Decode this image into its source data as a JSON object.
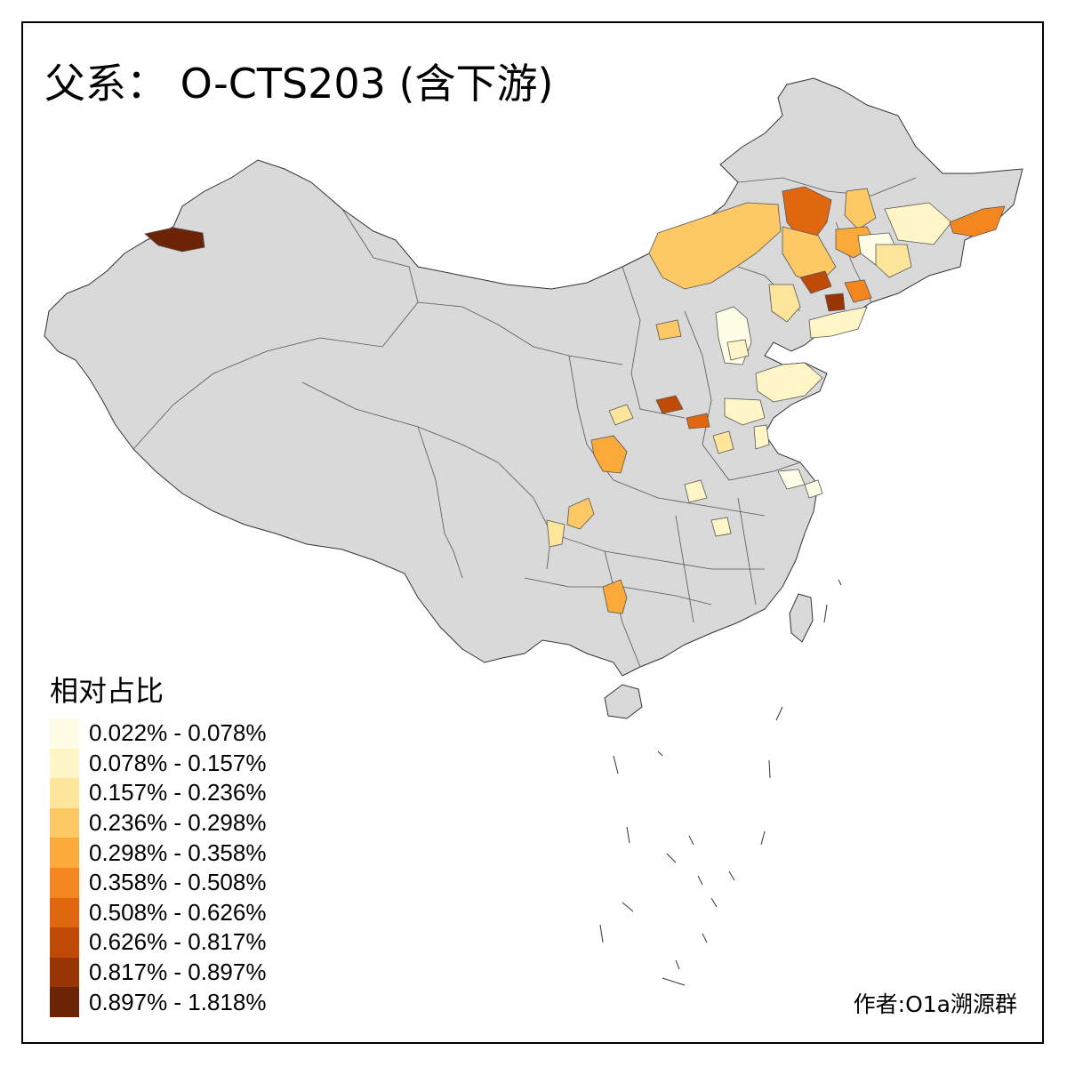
{
  "title": "父系： O-CTS203 (含下游)",
  "legend": {
    "title": "相对占比",
    "classes": [
      {
        "label": "0.022% - 0.078%",
        "color": "#fffde6"
      },
      {
        "label": "0.078% - 0.157%",
        "color": "#fff5c6"
      },
      {
        "label": "0.157% - 0.236%",
        "color": "#fee59c"
      },
      {
        "label": "0.236% - 0.298%",
        "color": "#fec964"
      },
      {
        "label": "0.298% - 0.358%",
        "color": "#fba938"
      },
      {
        "label": "0.358% - 0.508%",
        "color": "#f4861f"
      },
      {
        "label": "0.508% - 0.626%",
        "color": "#e06710"
      },
      {
        "label": "0.626% - 0.817%",
        "color": "#c04b06"
      },
      {
        "label": "0.817% - 0.897%",
        "color": "#993404"
      },
      {
        "label": "0.897% - 1.818%",
        "color": "#6b2405"
      }
    ]
  },
  "credit": "作者:O1a溯源群",
  "base_fill_color": "#d9d9d9",
  "boundary_color": "#333333"
}
